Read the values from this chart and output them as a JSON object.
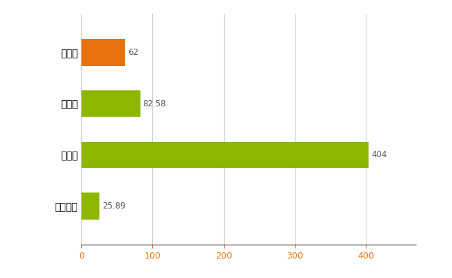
{
  "categories": [
    "立川市",
    "県平均",
    "県最大",
    "全国平均"
  ],
  "values": [
    62,
    82.58,
    404,
    25.89
  ],
  "bar_colors": [
    "#e8720c",
    "#8db600",
    "#8db600",
    "#8db600"
  ],
  "value_labels": [
    "62",
    "82.58",
    "404",
    "25.89"
  ],
  "xlim": [
    0,
    470
  ],
  "xticks": [
    0,
    100,
    200,
    300,
    400
  ],
  "bar_height": 0.52,
  "background_color": "#ffffff",
  "grid_color": "#cccccc",
  "label_fontsize": 10,
  "tick_fontsize": 9,
  "value_label_fontsize": 8.5,
  "value_label_color": "#555555",
  "tick_color": "#e8720c"
}
